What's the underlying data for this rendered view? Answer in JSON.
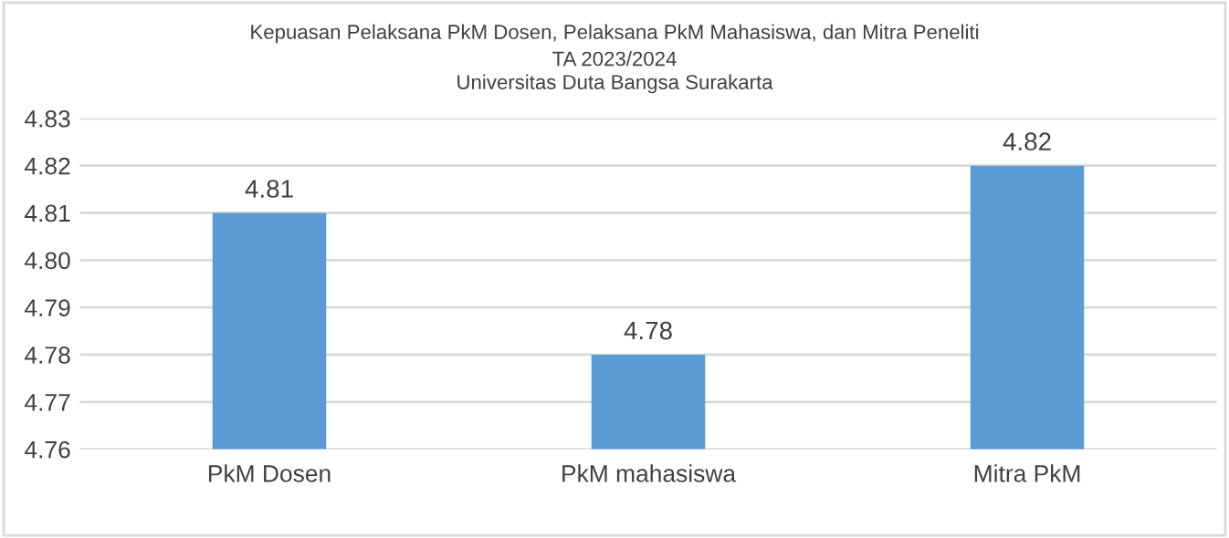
{
  "chart_data": {
    "type": "bar",
    "title": "Kepuasan Pelaksana PkM Dosen, Pelaksana PkM Mahasiswa, dan Mitra Peneliti",
    "subtitle": "TA 2023/2024\nUniversitas Duta Bangsa Surakarta",
    "categories": [
      "PkM Dosen",
      "PkM mahasiswa",
      "Mitra PkM"
    ],
    "values": [
      4.81,
      4.78,
      4.82
    ],
    "color": "#5b9bd5",
    "ylim": [
      4.76,
      4.83
    ],
    "yticks": [
      {
        "value": 4.76,
        "label": "4.76"
      },
      {
        "value": 4.77,
        "label": "4.77"
      },
      {
        "value": 4.78,
        "label": "4.78"
      },
      {
        "value": 4.79,
        "label": "4.79"
      },
      {
        "value": 4.8,
        "label": "4.80"
      },
      {
        "value": 4.81,
        "label": "4.81"
      },
      {
        "value": 4.82,
        "label": "4.82"
      },
      {
        "value": 4.83,
        "label": "4.83"
      }
    ],
    "grid": "y",
    "data_labels": true,
    "legend": false
  }
}
